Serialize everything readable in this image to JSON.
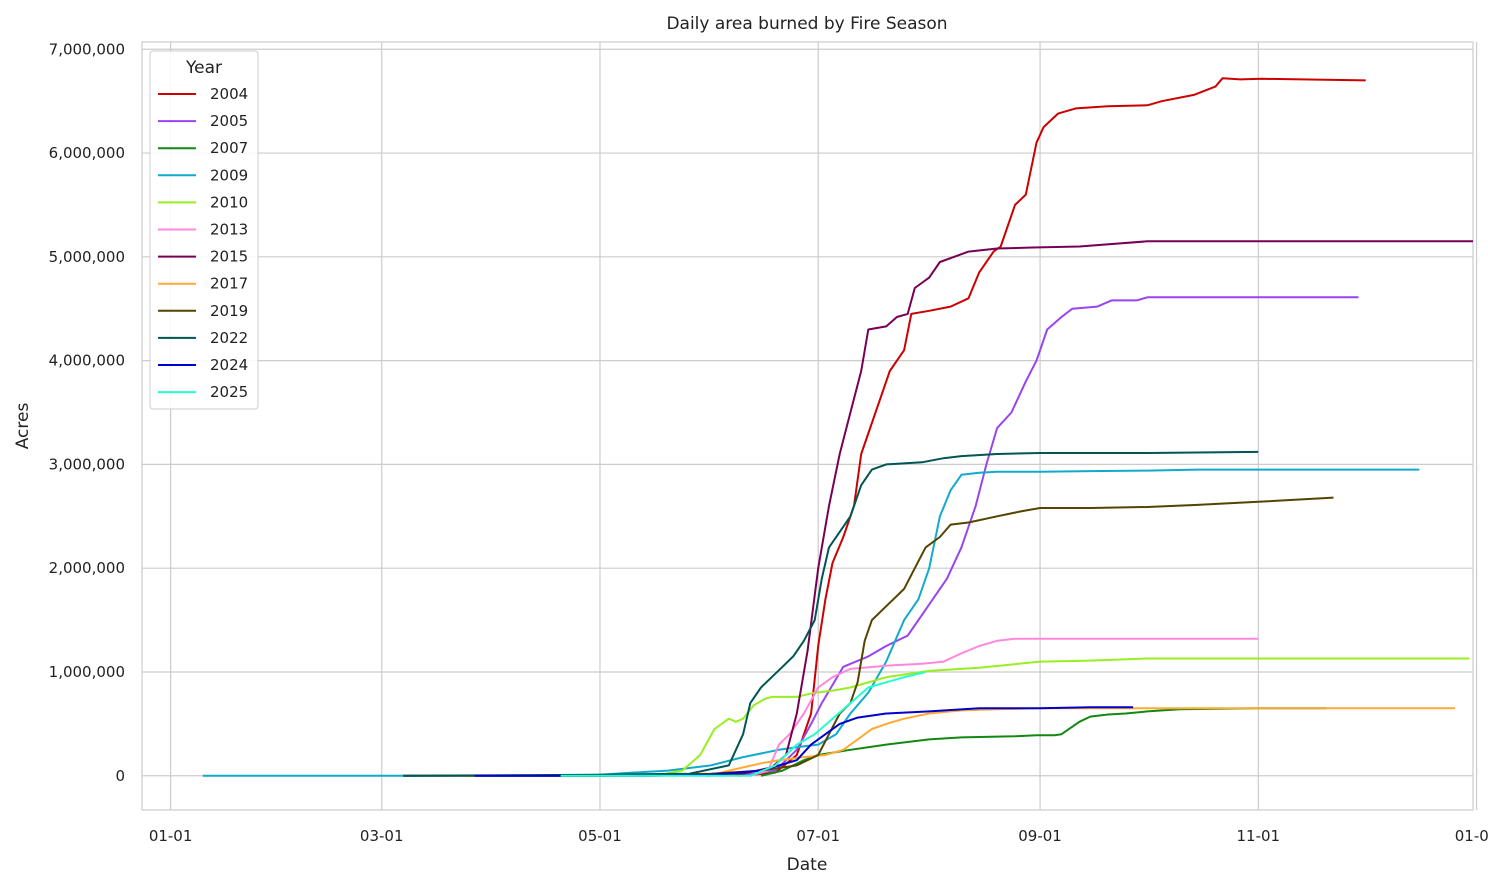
{
  "chart_data": {
    "type": "line",
    "title": "Daily area burned by Fire Season",
    "xlabel": "Date",
    "ylabel": "Acres",
    "x_unit": "month-day",
    "xlim": [
      "12-24",
      "12-31"
    ],
    "ylim": [
      -330000,
      7070000
    ],
    "x_ticks": [
      "01-01",
      "03-01",
      "05-01",
      "07-01",
      "09-01",
      "11-01",
      "01-01"
    ],
    "y_ticks": [
      0,
      1000000,
      2000000,
      3000000,
      4000000,
      5000000,
      6000000,
      7000000
    ],
    "y_tick_labels": [
      "0",
      "1,000,000",
      "2,000,000",
      "3,000,000",
      "4,000,000",
      "5,000,000",
      "6,000,000",
      "7,000,000"
    ],
    "grid": true,
    "legend": {
      "title": "Year",
      "position": "top-left"
    },
    "series": [
      {
        "name": "2004",
        "color": "#cc0000",
        "points": [
          [
            "06-09",
            0
          ],
          [
            "06-19",
            30000
          ],
          [
            "06-25",
            200000
          ],
          [
            "06-29",
            600000
          ],
          [
            "07-01",
            1250000
          ],
          [
            "07-03",
            1700000
          ],
          [
            "07-05",
            2050000
          ],
          [
            "07-08",
            2300000
          ],
          [
            "07-11",
            2600000
          ],
          [
            "07-13",
            3100000
          ],
          [
            "07-17",
            3500000
          ],
          [
            "07-21",
            3900000
          ],
          [
            "07-25",
            4100000
          ],
          [
            "07-27",
            4450000
          ],
          [
            "08-01",
            4480000
          ],
          [
            "08-07",
            4520000
          ],
          [
            "08-12",
            4600000
          ],
          [
            "08-15",
            4850000
          ],
          [
            "08-19",
            5050000
          ],
          [
            "08-21",
            5100000
          ],
          [
            "08-25",
            5500000
          ],
          [
            "08-28",
            5600000
          ],
          [
            "08-31",
            6100000
          ],
          [
            "09-02",
            6250000
          ],
          [
            "09-06",
            6380000
          ],
          [
            "09-11",
            6430000
          ],
          [
            "09-20",
            6450000
          ],
          [
            "10-01",
            6460000
          ],
          [
            "10-05",
            6500000
          ],
          [
            "10-14",
            6560000
          ],
          [
            "10-20",
            6640000
          ],
          [
            "10-22",
            6720000
          ],
          [
            "10-27",
            6710000
          ],
          [
            "11-02",
            6715000
          ],
          [
            "12-01",
            6700000
          ]
        ]
      },
      {
        "name": "2005",
        "color": "#9944ee",
        "points": [
          [
            "06-09",
            0
          ],
          [
            "06-19",
            50000
          ],
          [
            "06-25",
            250000
          ],
          [
            "06-29",
            500000
          ],
          [
            "07-02",
            700000
          ],
          [
            "07-08",
            1050000
          ],
          [
            "07-15",
            1150000
          ],
          [
            "07-20",
            1250000
          ],
          [
            "07-26",
            1350000
          ],
          [
            "07-31",
            1600000
          ],
          [
            "08-06",
            1900000
          ],
          [
            "08-10",
            2200000
          ],
          [
            "08-14",
            2600000
          ],
          [
            "08-17",
            3000000
          ],
          [
            "08-20",
            3350000
          ],
          [
            "08-24",
            3500000
          ],
          [
            "08-28",
            3800000
          ],
          [
            "08-31",
            4000000
          ],
          [
            "09-03",
            4300000
          ],
          [
            "09-07",
            4420000
          ],
          [
            "09-10",
            4500000
          ],
          [
            "09-17",
            4520000
          ],
          [
            "09-21",
            4580000
          ],
          [
            "09-28",
            4580000
          ],
          [
            "10-01",
            4610000
          ],
          [
            "11-29",
            4610000
          ]
        ]
      },
      {
        "name": "2007",
        "color": "#118811",
        "points": [
          [
            "06-15",
            0
          ],
          [
            "06-21",
            50000
          ],
          [
            "06-27",
            150000
          ],
          [
            "07-01",
            200000
          ],
          [
            "07-10",
            250000
          ],
          [
            "07-20",
            300000
          ],
          [
            "08-01",
            350000
          ],
          [
            "08-10",
            370000
          ],
          [
            "08-25",
            380000
          ],
          [
            "08-31",
            390000
          ],
          [
            "09-05",
            390000
          ],
          [
            "09-07",
            400000
          ],
          [
            "09-12",
            520000
          ],
          [
            "09-15",
            570000
          ],
          [
            "09-20",
            590000
          ],
          [
            "09-25",
            600000
          ],
          [
            "10-01",
            620000
          ],
          [
            "10-10",
            640000
          ],
          [
            "11-01",
            650000
          ],
          [
            "11-20",
            650000
          ]
        ]
      },
      {
        "name": "2009",
        "color": "#11aacc",
        "points": [
          [
            "01-10",
            0
          ],
          [
            "03-20",
            0
          ],
          [
            "04-20",
            0
          ],
          [
            "05-01",
            10000
          ],
          [
            "05-10",
            30000
          ],
          [
            "05-20",
            50000
          ],
          [
            "06-01",
            100000
          ],
          [
            "06-10",
            180000
          ],
          [
            "06-20",
            250000
          ],
          [
            "06-26",
            280000
          ],
          [
            "07-01",
            300000
          ],
          [
            "07-06",
            400000
          ],
          [
            "07-10",
            600000
          ],
          [
            "07-15",
            800000
          ],
          [
            "07-20",
            1100000
          ],
          [
            "07-25",
            1500000
          ],
          [
            "07-29",
            1700000
          ],
          [
            "08-01",
            2000000
          ],
          [
            "08-04",
            2500000
          ],
          [
            "08-07",
            2750000
          ],
          [
            "08-10",
            2900000
          ],
          [
            "08-15",
            2920000
          ],
          [
            "08-20",
            2930000
          ],
          [
            "09-01",
            2930000
          ],
          [
            "09-15",
            2935000
          ],
          [
            "10-01",
            2940000
          ],
          [
            "10-15",
            2950000
          ],
          [
            "12-16",
            2950000
          ]
        ]
      },
      {
        "name": "2010",
        "color": "#99ee22",
        "points": [
          [
            "05-16",
            0
          ],
          [
            "05-24",
            50000
          ],
          [
            "05-29",
            200000
          ],
          [
            "06-02",
            450000
          ],
          [
            "06-06",
            550000
          ],
          [
            "06-08",
            520000
          ],
          [
            "06-10",
            550000
          ],
          [
            "06-13",
            680000
          ],
          [
            "06-16",
            740000
          ],
          [
            "06-18",
            760000
          ],
          [
            "06-25",
            760000
          ],
          [
            "06-30",
            800000
          ],
          [
            "07-05",
            820000
          ],
          [
            "07-10",
            850000
          ],
          [
            "07-20",
            950000
          ],
          [
            "08-01",
            1010000
          ],
          [
            "08-15",
            1040000
          ],
          [
            "09-01",
            1100000
          ],
          [
            "09-15",
            1110000
          ],
          [
            "10-01",
            1130000
          ],
          [
            "11-01",
            1130000
          ],
          [
            "12-30",
            1130000
          ]
        ]
      },
      {
        "name": "2013",
        "color": "#ff88dd",
        "points": [
          [
            "06-12",
            0
          ],
          [
            "06-17",
            50000
          ],
          [
            "06-20",
            300000
          ],
          [
            "06-23",
            400000
          ],
          [
            "06-27",
            600000
          ],
          [
            "07-01",
            850000
          ],
          [
            "07-05",
            950000
          ],
          [
            "07-10",
            1030000
          ],
          [
            "07-20",
            1060000
          ],
          [
            "07-30",
            1080000
          ],
          [
            "08-05",
            1100000
          ],
          [
            "08-10",
            1180000
          ],
          [
            "08-15",
            1250000
          ],
          [
            "08-20",
            1300000
          ],
          [
            "08-25",
            1320000
          ],
          [
            "09-15",
            1320000
          ],
          [
            "11-01",
            1320000
          ]
        ]
      },
      {
        "name": "2015",
        "color": "#770055",
        "points": [
          [
            "05-31",
            0
          ],
          [
            "06-10",
            20000
          ],
          [
            "06-18",
            80000
          ],
          [
            "06-22",
            200000
          ],
          [
            "06-25",
            600000
          ],
          [
            "06-28",
            1200000
          ],
          [
            "07-01",
            2000000
          ],
          [
            "07-04",
            2600000
          ],
          [
            "07-07",
            3100000
          ],
          [
            "07-10",
            3500000
          ],
          [
            "07-13",
            3900000
          ],
          [
            "07-15",
            4300000
          ],
          [
            "07-20",
            4330000
          ],
          [
            "07-23",
            4420000
          ],
          [
            "07-26",
            4450000
          ],
          [
            "07-28",
            4700000
          ],
          [
            "08-01",
            4800000
          ],
          [
            "08-04",
            4950000
          ],
          [
            "08-08",
            5000000
          ],
          [
            "08-12",
            5050000
          ],
          [
            "08-20",
            5080000
          ],
          [
            "08-30",
            5090000
          ],
          [
            "09-12",
            5100000
          ],
          [
            "10-01",
            5150000
          ],
          [
            "12-31",
            5150000
          ]
        ]
      },
      {
        "name": "2017",
        "color": "#ffaa33",
        "points": [
          [
            "05-31",
            0
          ],
          [
            "06-10",
            80000
          ],
          [
            "06-15",
            120000
          ],
          [
            "06-20",
            150000
          ],
          [
            "06-27",
            180000
          ],
          [
            "07-03",
            200000
          ],
          [
            "07-08",
            250000
          ],
          [
            "07-12",
            350000
          ],
          [
            "07-16",
            450000
          ],
          [
            "07-20",
            500000
          ],
          [
            "07-25",
            550000
          ],
          [
            "08-01",
            600000
          ],
          [
            "08-10",
            630000
          ],
          [
            "08-20",
            640000
          ],
          [
            "09-01",
            650000
          ],
          [
            "10-01",
            650000
          ],
          [
            "12-26",
            650000
          ]
        ]
      },
      {
        "name": "2019",
        "color": "#554400",
        "points": [
          [
            "03-07",
            0
          ],
          [
            "05-01",
            0
          ],
          [
            "06-01",
            20000
          ],
          [
            "06-15",
            50000
          ],
          [
            "06-25",
            100000
          ],
          [
            "07-01",
            200000
          ],
          [
            "07-04",
            400000
          ],
          [
            "07-07",
            600000
          ],
          [
            "07-10",
            700000
          ],
          [
            "07-12",
            900000
          ],
          [
            "07-14",
            1300000
          ],
          [
            "07-16",
            1500000
          ],
          [
            "07-19",
            1600000
          ],
          [
            "07-22",
            1700000
          ],
          [
            "07-25",
            1800000
          ],
          [
            "07-28",
            2000000
          ],
          [
            "07-31",
            2200000
          ],
          [
            "08-04",
            2300000
          ],
          [
            "08-07",
            2420000
          ],
          [
            "08-12",
            2440000
          ],
          [
            "08-20",
            2500000
          ],
          [
            "08-27",
            2550000
          ],
          [
            "09-01",
            2580000
          ],
          [
            "09-15",
            2580000
          ],
          [
            "10-01",
            2590000
          ],
          [
            "10-15",
            2610000
          ],
          [
            "11-01",
            2640000
          ],
          [
            "11-22",
            2680000
          ]
        ]
      },
      {
        "name": "2022",
        "color": "#005555",
        "points": [
          [
            "03-07",
            0
          ],
          [
            "05-01",
            10000
          ],
          [
            "05-26",
            20000
          ],
          [
            "06-06",
            100000
          ],
          [
            "06-10",
            400000
          ],
          [
            "06-12",
            700000
          ],
          [
            "06-15",
            850000
          ],
          [
            "06-18",
            950000
          ],
          [
            "06-21",
            1050000
          ],
          [
            "06-24",
            1150000
          ],
          [
            "06-27",
            1300000
          ],
          [
            "06-30",
            1500000
          ],
          [
            "07-02",
            1900000
          ],
          [
            "07-04",
            2200000
          ],
          [
            "07-07",
            2350000
          ],
          [
            "07-10",
            2500000
          ],
          [
            "07-13",
            2800000
          ],
          [
            "07-16",
            2950000
          ],
          [
            "07-20",
            3000000
          ],
          [
            "07-30",
            3020000
          ],
          [
            "08-05",
            3060000
          ],
          [
            "08-10",
            3080000
          ],
          [
            "08-20",
            3100000
          ],
          [
            "09-01",
            3110000
          ],
          [
            "10-01",
            3110000
          ],
          [
            "11-01",
            3120000
          ]
        ]
      },
      {
        "name": "2024",
        "color": "#0000cc",
        "points": [
          [
            "03-27",
            0
          ],
          [
            "05-15",
            0
          ],
          [
            "06-01",
            10000
          ],
          [
            "06-15",
            50000
          ],
          [
            "06-25",
            150000
          ],
          [
            "06-29",
            300000
          ],
          [
            "07-03",
            400000
          ],
          [
            "07-07",
            500000
          ],
          [
            "07-12",
            560000
          ],
          [
            "07-20",
            600000
          ],
          [
            "08-01",
            620000
          ],
          [
            "08-15",
            650000
          ],
          [
            "09-01",
            650000
          ],
          [
            "09-15",
            660000
          ],
          [
            "09-27",
            660000
          ]
        ]
      },
      {
        "name": "2025",
        "color": "#22ffcc",
        "points": [
          [
            "04-20",
            0
          ],
          [
            "06-12",
            0
          ],
          [
            "06-19",
            100000
          ],
          [
            "06-25",
            300000
          ],
          [
            "06-30",
            400000
          ],
          [
            "07-05",
            550000
          ],
          [
            "07-10",
            700000
          ],
          [
            "07-15",
            850000
          ],
          [
            "07-20",
            900000
          ],
          [
            "07-25",
            950000
          ],
          [
            "07-31",
            1000000
          ]
        ]
      }
    ]
  }
}
